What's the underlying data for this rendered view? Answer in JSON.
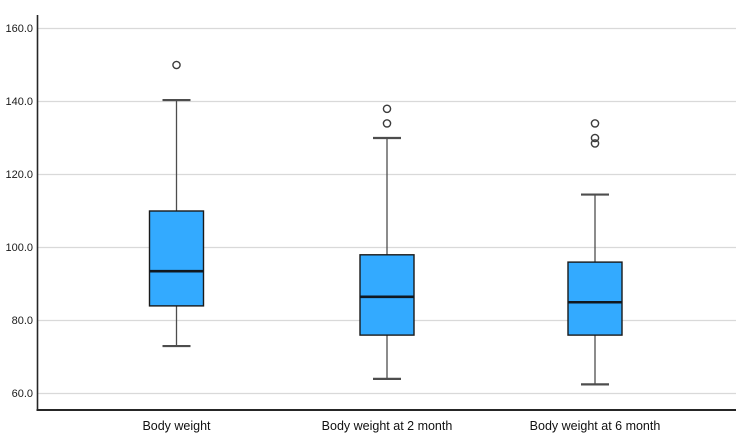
{
  "chart_data": {
    "type": "boxplot",
    "title": "",
    "xlabel": "",
    "ylabel": "",
    "categories": [
      "Body weight",
      "Body weight at 2 month",
      "Body weight at 6 month"
    ],
    "ylim": [
      55.5,
      163.7
    ],
    "grid": "horizontal",
    "legend": "none",
    "yticks": [
      {
        "value": 160,
        "label": "160.0"
      },
      {
        "value": 140,
        "label": "140.0"
      },
      {
        "value": 120,
        "label": "120.0"
      },
      {
        "value": 100,
        "label": "100.0"
      },
      {
        "value": 80,
        "label": "80.0"
      },
      {
        "value": 60,
        "label": "60.0"
      }
    ],
    "series": [
      {
        "category": "Body weight",
        "whisker_low": 73,
        "q1": 84,
        "median": 93.5,
        "q3": 110,
        "whisker_high": 140.4,
        "outliers": [
          150
        ]
      },
      {
        "category": "Body weight at 2 month",
        "whisker_low": 64,
        "q1": 76,
        "median": 86.5,
        "q3": 98,
        "whisker_high": 130,
        "outliers": [
          134,
          138
        ]
      },
      {
        "category": "Body weight at 6 month",
        "whisker_low": 62.5,
        "q1": 76,
        "median": 85,
        "q3": 96,
        "whisker_high": 114.5,
        "outliers": [
          128.5,
          130,
          134
        ]
      }
    ],
    "colors": {
      "box_fill": "#33AAFF",
      "box_border": "#1a1a1a",
      "median_line": "#101820",
      "whisker": "#4d4d4d",
      "outlier_stroke": "#3c3c3c",
      "gridline": "#d9d9d9",
      "axis_line": "#262626",
      "tick_label": "#1a1a1a",
      "category_label": "#111111"
    }
  }
}
